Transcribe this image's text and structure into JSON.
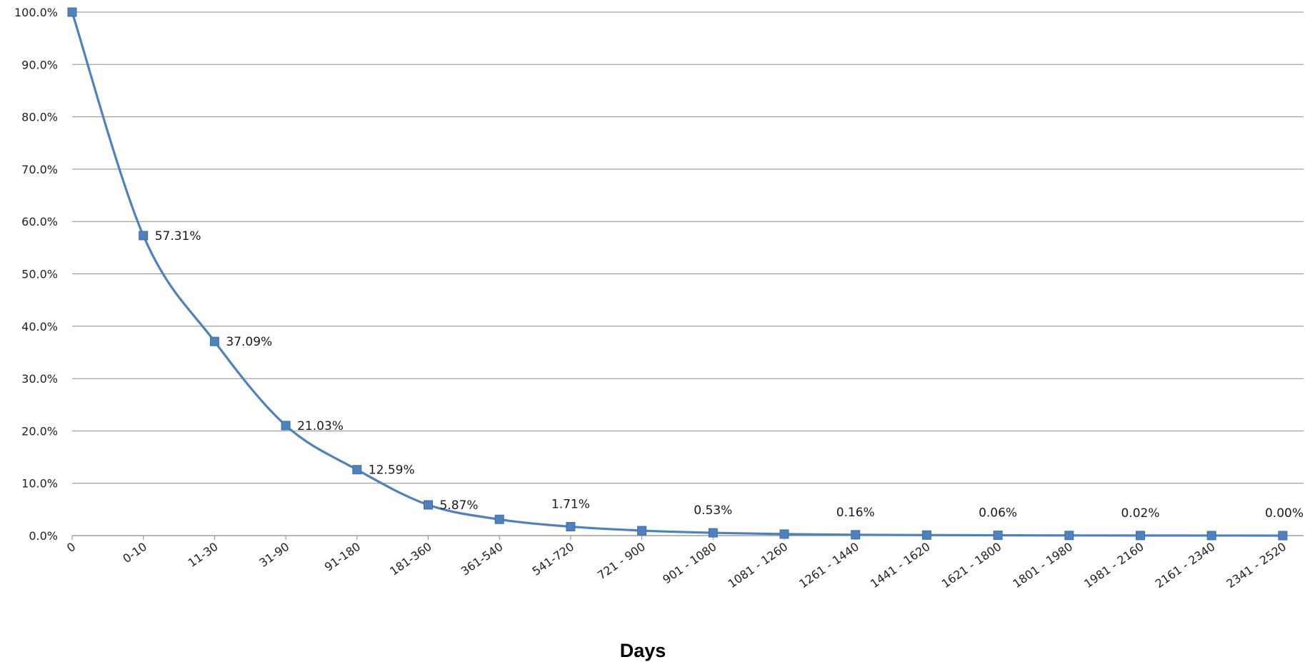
{
  "chart_data": {
    "type": "line",
    "title": "",
    "xlabel": "Days",
    "ylabel": "",
    "ylim": [
      0,
      100
    ],
    "yticks": [
      "0.0%",
      "10.0%",
      "20.0%",
      "30.0%",
      "40.0%",
      "50.0%",
      "60.0%",
      "70.0%",
      "80.0%",
      "90.0%",
      "100.0%"
    ],
    "grid": "horizontal",
    "legend": "none",
    "marker": "square",
    "smooth": true,
    "color": "#4f81bd",
    "categories": [
      "0",
      "0-10",
      "11-30",
      "31-90",
      "91-180",
      "181-360",
      "361-540",
      "541-720",
      "721 - 900",
      "901 - 1080",
      "1081 - 1260",
      "1261 - 1440",
      "1441 - 1620",
      "1621 - 1800",
      "1801 - 1980",
      "1981 - 2160",
      "2161 - 2340",
      "2341 - 2520"
    ],
    "series": [
      {
        "values": [
          100,
          57.31,
          37.09,
          21.03,
          12.59,
          5.87,
          3.1,
          1.71,
          0.95,
          0.53,
          0.29,
          0.16,
          0.1,
          0.06,
          0.03,
          0.02,
          0.01,
          0.0
        ]
      }
    ],
    "data_labels": [
      {
        "index": 1,
        "text": "57.31%"
      },
      {
        "index": 2,
        "text": "37.09%"
      },
      {
        "index": 3,
        "text": "21.03%"
      },
      {
        "index": 4,
        "text": "12.59%"
      },
      {
        "index": 5,
        "text": "5.87%"
      },
      {
        "index": 7,
        "text": "1.71%"
      },
      {
        "index": 9,
        "text": "0.53%"
      },
      {
        "index": 11,
        "text": "0.16%"
      },
      {
        "index": 13,
        "text": "0.06%"
      },
      {
        "index": 15,
        "text": "0.02%"
      },
      {
        "index": 17,
        "text": "0.00%"
      }
    ]
  }
}
